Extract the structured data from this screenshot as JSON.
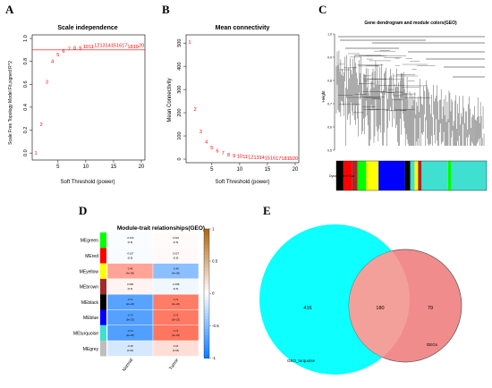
{
  "panels": {
    "A": {
      "letter": "A",
      "chart_data": {
        "type": "scatter",
        "title": "Scale independence",
        "xlabel": "Soft Threshold (power)",
        "ylabel": "Scale Free Topology Model Fit,signed R^2",
        "xlim": [
          1,
          20
        ],
        "ylim": [
          -0.03,
          1.0
        ],
        "xticks": [
          "5",
          "10",
          "15",
          "20"
        ],
        "yticks": [
          "0.0",
          "0.2",
          "0.4",
          "0.6",
          "0.8",
          "1.0"
        ],
        "threshold_line": 0.9,
        "points": [
          {
            "x": 1,
            "y": 0.0,
            "label": "1"
          },
          {
            "x": 2,
            "y": 0.25,
            "label": "2"
          },
          {
            "x": 3,
            "y": 0.62,
            "label": "3"
          },
          {
            "x": 4,
            "y": 0.8,
            "label": "4"
          },
          {
            "x": 5,
            "y": 0.86,
            "label": "5"
          },
          {
            "x": 6,
            "y": 0.89,
            "label": "6"
          },
          {
            "x": 7,
            "y": 0.91,
            "label": "7"
          },
          {
            "x": 8,
            "y": 0.92,
            "label": "8"
          },
          {
            "x": 9,
            "y": 0.92,
            "label": "9"
          },
          {
            "x": 10,
            "y": 0.93,
            "label": "10"
          },
          {
            "x": 11,
            "y": 0.93,
            "label": "11"
          },
          {
            "x": 12,
            "y": 0.94,
            "label": "12"
          },
          {
            "x": 13,
            "y": 0.94,
            "label": "13"
          },
          {
            "x": 14,
            "y": 0.94,
            "label": "14"
          },
          {
            "x": 15,
            "y": 0.94,
            "label": "15"
          },
          {
            "x": 16,
            "y": 0.94,
            "label": "16"
          },
          {
            "x": 17,
            "y": 0.94,
            "label": "17"
          },
          {
            "x": 18,
            "y": 0.93,
            "label": "18"
          },
          {
            "x": 19,
            "y": 0.93,
            "label": "19"
          },
          {
            "x": 20,
            "y": 0.94,
            "label": "20"
          }
        ],
        "point_color": "#ff0000",
        "line_color": "#ff0000"
      }
    },
    "B": {
      "letter": "B",
      "chart_data": {
        "type": "scatter",
        "title": "Mean connectivity",
        "xlabel": "Soft Threshold (power)",
        "ylabel": "Mean Connectivity",
        "xlim": [
          1,
          20
        ],
        "ylim": [
          0,
          520
        ],
        "xticks": [
          "5",
          "10",
          "15",
          "20"
        ],
        "yticks": [
          "0",
          "100",
          "200",
          "300",
          "400",
          "500"
        ],
        "points": [
          {
            "x": 1,
            "y": 505,
            "label": "1"
          },
          {
            "x": 2,
            "y": 215,
            "label": "2"
          },
          {
            "x": 3,
            "y": 120,
            "label": "3"
          },
          {
            "x": 4,
            "y": 75,
            "label": "4"
          },
          {
            "x": 5,
            "y": 50,
            "label": "5"
          },
          {
            "x": 6,
            "y": 36,
            "label": "6"
          },
          {
            "x": 7,
            "y": 27,
            "label": "7"
          },
          {
            "x": 8,
            "y": 20,
            "label": "8"
          },
          {
            "x": 9,
            "y": 16,
            "label": "9"
          },
          {
            "x": 10,
            "y": 13,
            "label": "10"
          },
          {
            "x": 11,
            "y": 11,
            "label": "11"
          },
          {
            "x": 12,
            "y": 9,
            "label": "12"
          },
          {
            "x": 13,
            "y": 8,
            "label": "13"
          },
          {
            "x": 14,
            "y": 7,
            "label": "14"
          },
          {
            "x": 15,
            "y": 6,
            "label": "15"
          },
          {
            "x": 16,
            "y": 5,
            "label": "16"
          },
          {
            "x": 17,
            "y": 4,
            "label": "17"
          },
          {
            "x": 18,
            "y": 4,
            "label": "18"
          },
          {
            "x": 19,
            "y": 3,
            "label": "19"
          },
          {
            "x": 20,
            "y": 3,
            "label": "20"
          }
        ],
        "point_color": "#ff0000"
      }
    },
    "C": {
      "letter": "C",
      "title": "Gene dendrogram and module colors(GEO)",
      "ylabel": "Height",
      "yticks": [
        "1.0",
        "0.9",
        "0.8",
        "0.7",
        "0.6",
        "0.5"
      ],
      "color_bar_label": "Dynamic Tree Cut",
      "module_colors": [
        "#000000",
        "#ff0000",
        "#a52a2a",
        "#00ff00",
        "#ffff00",
        "#0000ff",
        "#000000",
        "#40e0d0",
        "#ffff00",
        "#a52a2a",
        "#40e0d0",
        "#00ff00",
        "#40e0d0"
      ]
    },
    "D": {
      "letter": "D",
      "chart_data": {
        "type": "heatmap",
        "title": "Module-trait relationships(GEO)",
        "rows": [
          "MEgreen",
          "MEred",
          "MEyellow",
          "MEbrown",
          "MEblack",
          "MEblue",
          "MEturquoise",
          "MEgrey"
        ],
        "row_colors": [
          "#00ff00",
          "#ff0000",
          "#ffff00",
          "#a52a2a",
          "#000000",
          "#0000ff",
          "#40e0d0",
          "#bebebe"
        ],
        "columns": [
          "Normal",
          "Tumor"
        ],
        "values": [
          [
            -0.02,
            0.02
          ],
          [
            -0.03,
            0.03
          ],
          [
            0.49,
            -0.49
          ],
          [
            0.06,
            -0.06
          ],
          [
            -0.71,
            0.71
          ],
          [
            -0.72,
            0.72
          ],
          [
            -0.74,
            0.74
          ],
          [
            -0.18,
            0.18
          ]
        ],
        "cell_text": [
          [
            "-0.020\n(0.8)",
            "0.020\n(0.8)"
          ],
          [
            "-0.027\n(0.8)",
            "0.027\n(0.8)"
          ],
          [
            "0.49\n(4e-09)",
            "-0.49\n(4e-09)"
          ],
          [
            "0.058\n(0.5)",
            "-0.058\n(0.5)"
          ],
          [
            "-0.71\n(2e-22)",
            "0.71\n(2e-22)"
          ],
          [
            "-0.72\n(5e-23)",
            "0.72\n(5e-23)"
          ],
          [
            "-0.74\n(3e-25)",
            "0.74\n(3e-25)"
          ],
          [
            "-0.18\n(0.04)",
            "0.18\n(0.04)"
          ]
        ],
        "colorbar_ticks": [
          "1",
          "0.5",
          "0",
          "-0.5",
          "-1"
        ],
        "colorbar_range": [
          -1,
          1
        ]
      }
    },
    "E": {
      "letter": "E",
      "venn": {
        "left_only": "416",
        "overlap": "180",
        "right_only": "79",
        "left_label": "GEO_turquoise",
        "right_label": "DEGs",
        "left_color": "#00ffff",
        "right_color": "#f08080"
      }
    }
  }
}
